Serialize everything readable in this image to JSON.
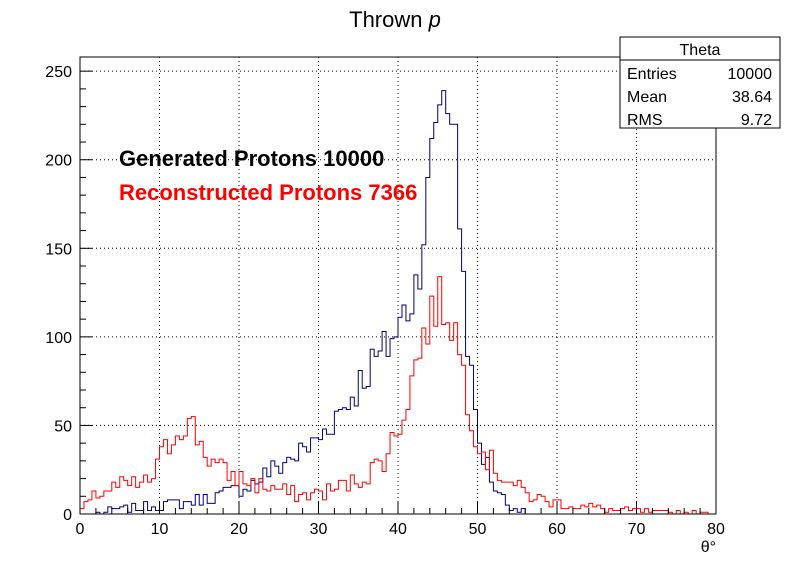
{
  "chart_data": {
    "type": "histogram",
    "title_main": "Thrown ",
    "title_italic": "p",
    "xlabel": "θ°",
    "ylabel": "",
    "xlim": [
      0,
      80
    ],
    "ylim": [
      0,
      258
    ],
    "x_ticks": [
      0,
      10,
      20,
      30,
      40,
      50,
      60,
      70,
      80
    ],
    "y_ticks": [
      0,
      50,
      100,
      150,
      200,
      250
    ],
    "grid": true,
    "bin_width": 0.5,
    "annotations": [
      {
        "text": "Generated Protons 10000",
        "color": "#000000"
      },
      {
        "text": "Reconstructed Protons 7366",
        "color": "#ff0000"
      }
    ],
    "stats_box": {
      "title": "Theta",
      "rows": [
        {
          "label": "Entries",
          "value": "10000"
        },
        {
          "label": "Mean",
          "value": "38.64"
        },
        {
          "label": "RMS",
          "value": "9.72"
        }
      ]
    },
    "series": [
      {
        "color": "#000080",
        "profile": [
          [
            0,
            0
          ],
          [
            2,
            0
          ],
          [
            4,
            2
          ],
          [
            6,
            3
          ],
          [
            8,
            4
          ],
          [
            10,
            5
          ],
          [
            12,
            6
          ],
          [
            14,
            7
          ],
          [
            16,
            9
          ],
          [
            18,
            11
          ],
          [
            20,
            14
          ],
          [
            22,
            18
          ],
          [
            24,
            24
          ],
          [
            26,
            30
          ],
          [
            28,
            35
          ],
          [
            30,
            42
          ],
          [
            32,
            55
          ],
          [
            34,
            65
          ],
          [
            36,
            80
          ],
          [
            38,
            90
          ],
          [
            40,
            105
          ],
          [
            42,
            125
          ],
          [
            43,
            150
          ],
          [
            44,
            190
          ],
          [
            45,
            235
          ],
          [
            46,
            240
          ],
          [
            47,
            225
          ],
          [
            48,
            150
          ],
          [
            49,
            85
          ],
          [
            50,
            45
          ],
          [
            51,
            30
          ],
          [
            52,
            18
          ],
          [
            53,
            10
          ],
          [
            54,
            5
          ],
          [
            55,
            3
          ],
          [
            56,
            1
          ],
          [
            57,
            0
          ],
          [
            80,
            0
          ]
        ]
      },
      {
        "color": "#ff0000",
        "profile": [
          [
            0,
            2
          ],
          [
            1,
            5
          ],
          [
            2,
            10
          ],
          [
            3,
            13
          ],
          [
            4,
            15
          ],
          [
            6,
            16
          ],
          [
            8,
            17
          ],
          [
            9,
            19
          ],
          [
            10,
            30
          ],
          [
            11,
            38
          ],
          [
            12,
            46
          ],
          [
            13,
            52
          ],
          [
            14,
            51
          ],
          [
            15,
            42
          ],
          [
            16,
            33
          ],
          [
            17,
            28
          ],
          [
            18,
            24
          ],
          [
            20,
            20
          ],
          [
            22,
            17
          ],
          [
            24,
            15
          ],
          [
            26,
            12
          ],
          [
            28,
            10
          ],
          [
            30,
            12
          ],
          [
            32,
            14
          ],
          [
            34,
            17
          ],
          [
            36,
            22
          ],
          [
            38,
            30
          ],
          [
            39,
            38
          ],
          [
            40,
            48
          ],
          [
            41,
            62
          ],
          [
            42,
            80
          ],
          [
            43,
            98
          ],
          [
            44,
            110
          ],
          [
            45,
            120
          ],
          [
            46,
            117
          ],
          [
            47,
            108
          ],
          [
            48,
            86
          ],
          [
            49,
            60
          ],
          [
            50,
            43
          ],
          [
            51,
            33
          ],
          [
            52,
            27
          ],
          [
            53,
            22
          ],
          [
            54,
            19
          ],
          [
            55,
            15
          ],
          [
            56,
            12
          ],
          [
            57,
            10
          ],
          [
            58,
            8
          ],
          [
            60,
            6
          ],
          [
            62,
            5
          ],
          [
            64,
            4
          ],
          [
            66,
            3
          ],
          [
            68,
            2
          ],
          [
            70,
            2
          ],
          [
            72,
            1
          ],
          [
            75,
            1
          ],
          [
            78,
            0.5
          ],
          [
            80,
            0
          ]
        ]
      }
    ]
  }
}
